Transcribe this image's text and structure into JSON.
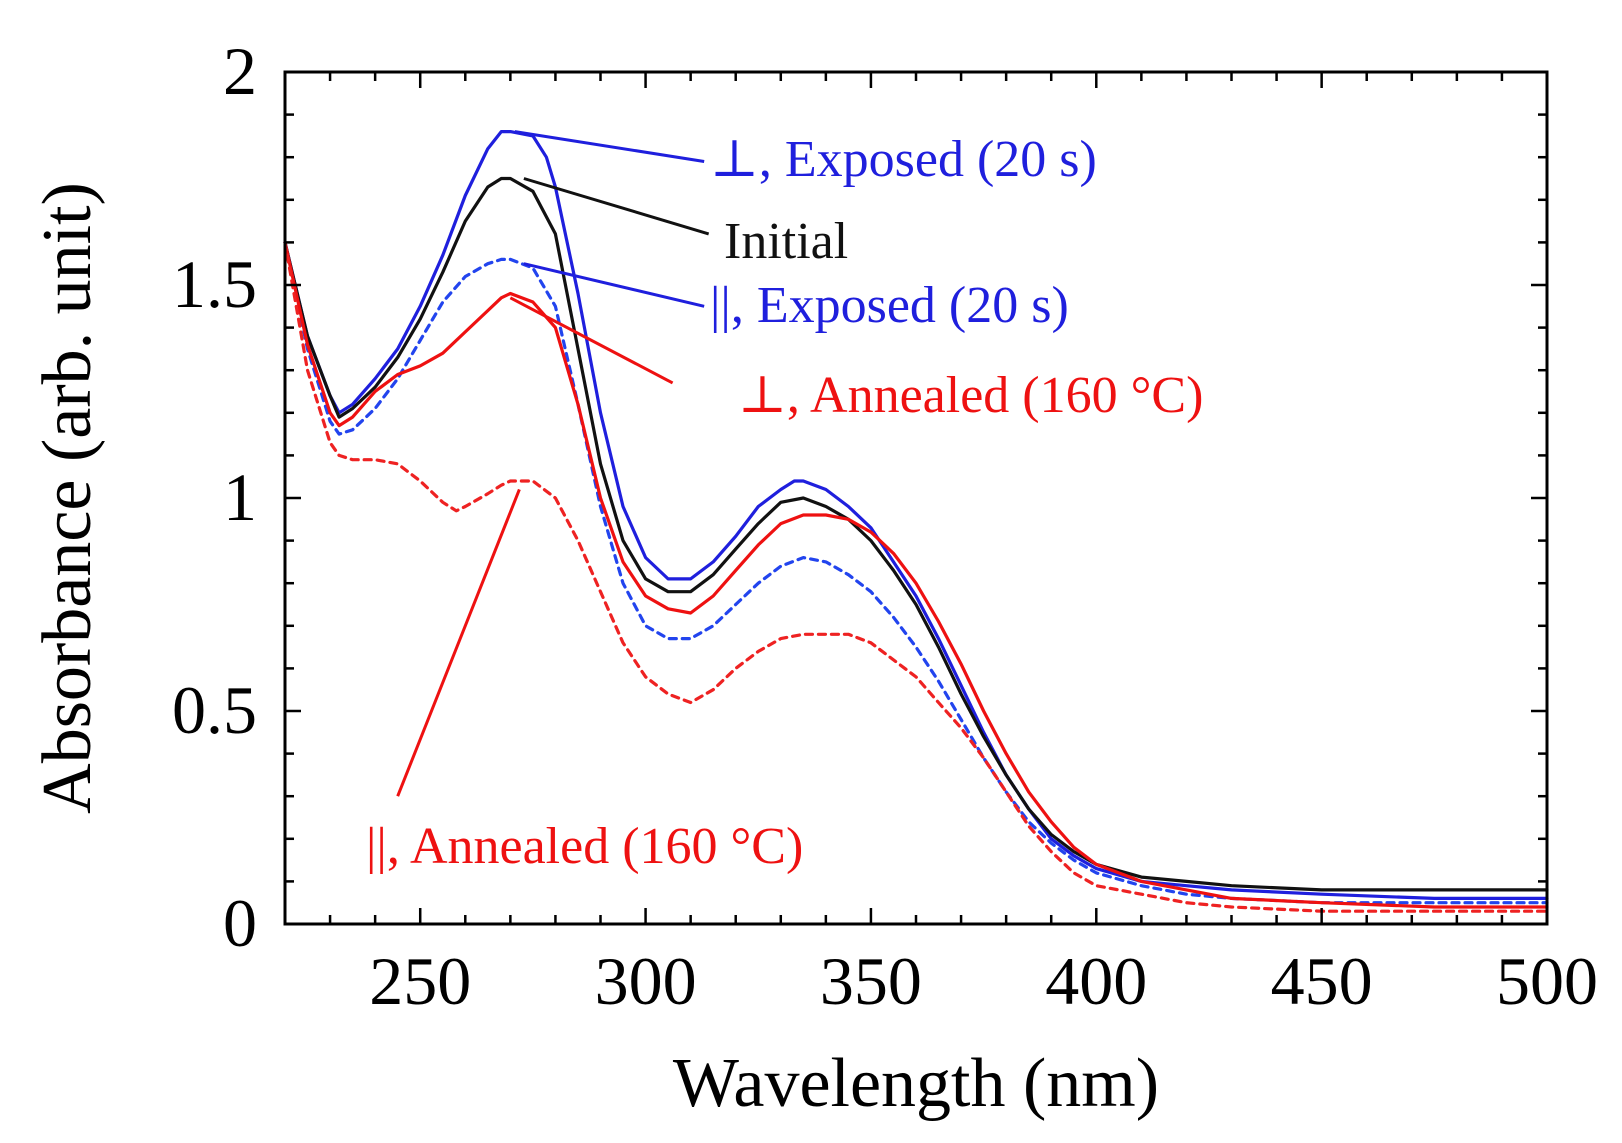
{
  "chart_data": {
    "type": "line",
    "title": "",
    "xlabel": "Wavelength (nm)",
    "ylabel": "Absorbance (arb. unit)",
    "xlim": [
      220,
      500
    ],
    "ylim": [
      0,
      2
    ],
    "xticks": [
      250,
      300,
      350,
      400,
      450,
      500
    ],
    "xtick_labels": [
      "250",
      "300",
      "350",
      "400",
      "450",
      "500"
    ],
    "yticks": [
      0,
      0.5,
      1,
      1.5,
      2
    ],
    "ytick_labels": [
      "0",
      "0.5",
      "1",
      "1.5",
      "2"
    ],
    "grid": false,
    "legend": "none (direct annotations)",
    "series": [
      {
        "name": "⊥, Exposed (20 s)",
        "color": "#1f1fdd",
        "dash": "solid",
        "x": [
          220,
          225,
          230,
          232,
          235,
          240,
          245,
          250,
          255,
          260,
          265,
          268,
          270,
          275,
          278,
          280,
          285,
          290,
          295,
          300,
          305,
          310,
          315,
          320,
          325,
          330,
          333,
          335,
          340,
          345,
          350,
          355,
          360,
          365,
          370,
          375,
          380,
          385,
          390,
          395,
          400,
          410,
          420,
          430,
          450,
          475,
          500
        ],
        "y": [
          1.6,
          1.38,
          1.24,
          1.2,
          1.22,
          1.28,
          1.35,
          1.45,
          1.57,
          1.71,
          1.82,
          1.86,
          1.86,
          1.85,
          1.8,
          1.73,
          1.48,
          1.2,
          0.98,
          0.86,
          0.81,
          0.81,
          0.85,
          0.91,
          0.98,
          1.02,
          1.04,
          1.04,
          1.02,
          0.98,
          0.93,
          0.85,
          0.77,
          0.67,
          0.56,
          0.45,
          0.35,
          0.27,
          0.2,
          0.16,
          0.13,
          0.1,
          0.09,
          0.08,
          0.07,
          0.06,
          0.06
        ]
      },
      {
        "name": "Initial",
        "color": "#111111",
        "dash": "solid",
        "x": [
          220,
          225,
          230,
          232,
          235,
          240,
          245,
          250,
          255,
          260,
          265,
          268,
          270,
          275,
          280,
          285,
          290,
          295,
          300,
          305,
          310,
          315,
          320,
          325,
          330,
          335,
          340,
          345,
          350,
          355,
          360,
          365,
          370,
          375,
          380,
          385,
          390,
          395,
          400,
          410,
          420,
          430,
          450,
          475,
          500
        ],
        "y": [
          1.6,
          1.38,
          1.24,
          1.19,
          1.21,
          1.26,
          1.33,
          1.42,
          1.53,
          1.65,
          1.73,
          1.75,
          1.75,
          1.72,
          1.62,
          1.35,
          1.08,
          0.9,
          0.81,
          0.78,
          0.78,
          0.82,
          0.88,
          0.94,
          0.99,
          1.0,
          0.98,
          0.95,
          0.9,
          0.83,
          0.75,
          0.65,
          0.54,
          0.44,
          0.35,
          0.27,
          0.21,
          0.17,
          0.14,
          0.11,
          0.1,
          0.09,
          0.08,
          0.08,
          0.08
        ]
      },
      {
        "name": "||, Exposed (20 s)",
        "color": "#2244ee",
        "dash": "dotted",
        "x": [
          220,
          225,
          230,
          232,
          235,
          240,
          245,
          250,
          255,
          260,
          265,
          268,
          270,
          275,
          280,
          285,
          290,
          295,
          300,
          305,
          310,
          315,
          320,
          325,
          330,
          335,
          340,
          345,
          350,
          355,
          360,
          365,
          370,
          375,
          380,
          385,
          390,
          395,
          400,
          410,
          420,
          430,
          450,
          475,
          500
        ],
        "y": [
          1.6,
          1.35,
          1.18,
          1.15,
          1.16,
          1.21,
          1.28,
          1.37,
          1.46,
          1.52,
          1.55,
          1.56,
          1.56,
          1.54,
          1.45,
          1.22,
          0.98,
          0.8,
          0.7,
          0.67,
          0.67,
          0.7,
          0.75,
          0.8,
          0.84,
          0.86,
          0.85,
          0.82,
          0.78,
          0.72,
          0.65,
          0.57,
          0.48,
          0.39,
          0.31,
          0.24,
          0.19,
          0.15,
          0.12,
          0.09,
          0.07,
          0.06,
          0.05,
          0.05,
          0.05
        ]
      },
      {
        "name": "⊥, Annealed (160 °C)",
        "color": "#ee1111",
        "dash": "solid",
        "x": [
          220,
          225,
          230,
          232,
          235,
          240,
          245,
          250,
          255,
          260,
          265,
          268,
          270,
          275,
          280,
          285,
          290,
          295,
          300,
          305,
          310,
          315,
          320,
          325,
          330,
          335,
          340,
          345,
          350,
          355,
          360,
          365,
          370,
          375,
          380,
          385,
          390,
          395,
          400,
          410,
          420,
          430,
          450,
          475,
          500
        ],
        "y": [
          1.6,
          1.36,
          1.2,
          1.17,
          1.19,
          1.25,
          1.29,
          1.31,
          1.34,
          1.39,
          1.44,
          1.47,
          1.48,
          1.46,
          1.4,
          1.22,
          1.0,
          0.85,
          0.77,
          0.74,
          0.73,
          0.77,
          0.83,
          0.89,
          0.94,
          0.96,
          0.96,
          0.95,
          0.92,
          0.87,
          0.8,
          0.71,
          0.61,
          0.5,
          0.4,
          0.31,
          0.24,
          0.18,
          0.14,
          0.1,
          0.08,
          0.06,
          0.05,
          0.04,
          0.04
        ]
      },
      {
        "name": "||, Annealed (160 °C)",
        "color": "#ee2222",
        "dash": "dotted",
        "x": [
          220,
          225,
          230,
          232,
          235,
          240,
          245,
          250,
          255,
          258,
          260,
          265,
          268,
          270,
          275,
          280,
          285,
          290,
          295,
          300,
          305,
          310,
          315,
          320,
          325,
          330,
          335,
          340,
          345,
          350,
          355,
          360,
          365,
          370,
          375,
          380,
          385,
          390,
          395,
          400,
          410,
          420,
          430,
          450,
          475,
          500
        ],
        "y": [
          1.6,
          1.3,
          1.13,
          1.1,
          1.09,
          1.09,
          1.08,
          1.04,
          0.99,
          0.97,
          0.98,
          1.01,
          1.03,
          1.04,
          1.04,
          1.0,
          0.9,
          0.78,
          0.66,
          0.58,
          0.54,
          0.52,
          0.55,
          0.6,
          0.64,
          0.67,
          0.68,
          0.68,
          0.68,
          0.66,
          0.62,
          0.58,
          0.52,
          0.46,
          0.39,
          0.31,
          0.23,
          0.17,
          0.12,
          0.09,
          0.07,
          0.05,
          0.04,
          0.03,
          0.03,
          0.03
        ]
      }
    ],
    "annotations": [
      {
        "text": "⊥, Exposed (20 s)",
        "color": "#1f1fdd",
        "leader_from": [
          271,
          1.86
        ],
        "leader_to": [
          313,
          1.79
        ]
      },
      {
        "text": "Initial",
        "color": "#111111",
        "leader_from": [
          273,
          1.75
        ],
        "leader_to": [
          314,
          1.62
        ]
      },
      {
        "text": "||, Exposed (20 s)",
        "color": "#1f1fdd",
        "leader_from": [
          273,
          1.55
        ],
        "leader_to": [
          313,
          1.45
        ]
      },
      {
        "text": "⊥, Annealed (160 °C)",
        "color": "#ee1111",
        "leader_from": [
          270,
          1.47
        ],
        "leader_to": [
          306,
          1.27
        ]
      },
      {
        "text": "||, Annealed (160 °C)",
        "color": "#ee1111",
        "leader_from": [
          272,
          1.02
        ],
        "leader_to": [
          245,
          0.3
        ]
      }
    ]
  }
}
